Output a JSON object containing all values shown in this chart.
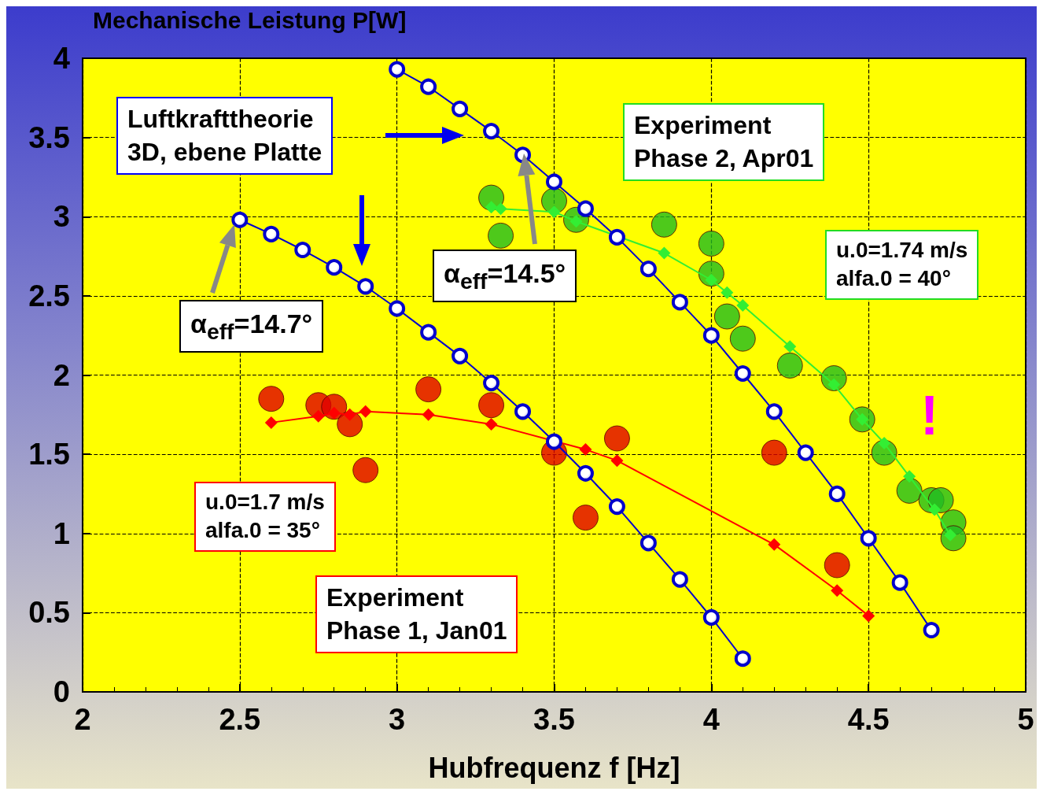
{
  "chart_data": {
    "type": "line",
    "ylabel": "Mechanische Leistung P[W]",
    "xlabel": "Hubfrequenz f [Hz]",
    "xlim": [
      2,
      5
    ],
    "xticks": [
      2,
      2.5,
      3,
      3.5,
      4,
      4.5,
      5
    ],
    "ylim": [
      0,
      4
    ],
    "yticks": [
      0,
      0.5,
      1,
      1.5,
      2,
      2.5,
      3,
      3.5,
      4
    ],
    "grid": true,
    "annotations": [
      "Luftkrafttheorie\n3D, ebene Platte",
      "α$_{eff}$=14.7°",
      "α$_{eff}$=14.5°",
      "Experiment\nPhase 2, Apr01",
      "u.0=1.74 m/s\nalfa.0 = 40°",
      "u.0=1.7 m/s\nalfa.0 = 35°",
      "Experiment\nPhase 1, Jan01",
      "!"
    ],
    "series": [
      {
        "marker": "circle",
        "color": "#0000cc",
        "x": [
          2.5,
          2.6,
          2.7,
          2.8,
          2.9,
          3.0,
          3.1,
          3.2,
          3.3,
          3.4,
          3.5,
          3.6,
          3.7,
          3.8,
          3.9,
          4.0,
          4.1
        ],
        "values": [
          2.98,
          2.89,
          2.79,
          2.68,
          2.56,
          2.42,
          2.27,
          2.12,
          1.95,
          1.77,
          1.58,
          1.38,
          1.17,
          0.94,
          0.71,
          0.47,
          0.21
        ]
      },
      {
        "marker": "circle",
        "color": "#0000cc",
        "x": [
          3.0,
          3.1,
          3.2,
          3.3,
          3.4,
          3.5,
          3.6,
          3.7,
          3.8,
          3.9,
          4.0,
          4.1,
          4.2,
          4.3,
          4.4,
          4.5,
          4.6,
          4.7
        ],
        "values": [
          3.93,
          3.82,
          3.68,
          3.54,
          3.39,
          3.22,
          3.05,
          2.87,
          2.67,
          2.46,
          2.25,
          2.01,
          1.77,
          1.51,
          1.25,
          0.97,
          0.69,
          0.39
        ]
      },
      {
        "marker": "diamond",
        "color": "#ff0000",
        "x": [
          2.6,
          2.75,
          2.8,
          2.85,
          2.9,
          3.1,
          3.3,
          3.6,
          3.7,
          4.2,
          4.4,
          4.5
        ],
        "values": [
          1.7,
          1.74,
          1.76,
          1.75,
          1.77,
          1.75,
          1.69,
          1.53,
          1.46,
          0.93,
          0.64,
          0.48
        ]
      },
      {
        "type": "scatter",
        "marker": "circle",
        "color": "#e00000",
        "x": [
          2.6,
          2.75,
          2.8,
          2.85,
          2.9,
          3.1,
          3.3,
          3.5,
          3.6,
          3.7,
          4.2,
          4.4
        ],
        "values": [
          1.85,
          1.81,
          1.8,
          1.69,
          1.4,
          1.91,
          1.81,
          1.51,
          1.1,
          1.6,
          1.51,
          0.8
        ]
      },
      {
        "marker": "diamond",
        "color": "#33ee33",
        "x": [
          3.3,
          3.33,
          3.5,
          3.57,
          3.85,
          4.0,
          4.05,
          4.1,
          4.25,
          4.39,
          4.48,
          4.55,
          4.63,
          4.71,
          4.76
        ],
        "values": [
          3.06,
          3.05,
          3.03,
          2.97,
          2.77,
          2.6,
          2.52,
          2.44,
          2.18,
          1.94,
          1.72,
          1.57,
          1.36,
          1.15,
          0.99
        ]
      },
      {
        "type": "scatter",
        "marker": "circle",
        "color": "#22bb22",
        "x": [
          3.3,
          3.33,
          3.5,
          3.57,
          3.85,
          4.0,
          4.0,
          4.05,
          4.1,
          4.25,
          4.39,
          4.48,
          4.55,
          4.63,
          4.7,
          4.73,
          4.77,
          4.77
        ],
        "values": [
          3.12,
          2.88,
          3.1,
          2.98,
          2.95,
          2.83,
          2.64,
          2.37,
          2.23,
          2.06,
          1.98,
          1.72,
          1.51,
          1.27,
          1.21,
          1.21,
          1.07,
          0.97
        ]
      }
    ]
  }
}
